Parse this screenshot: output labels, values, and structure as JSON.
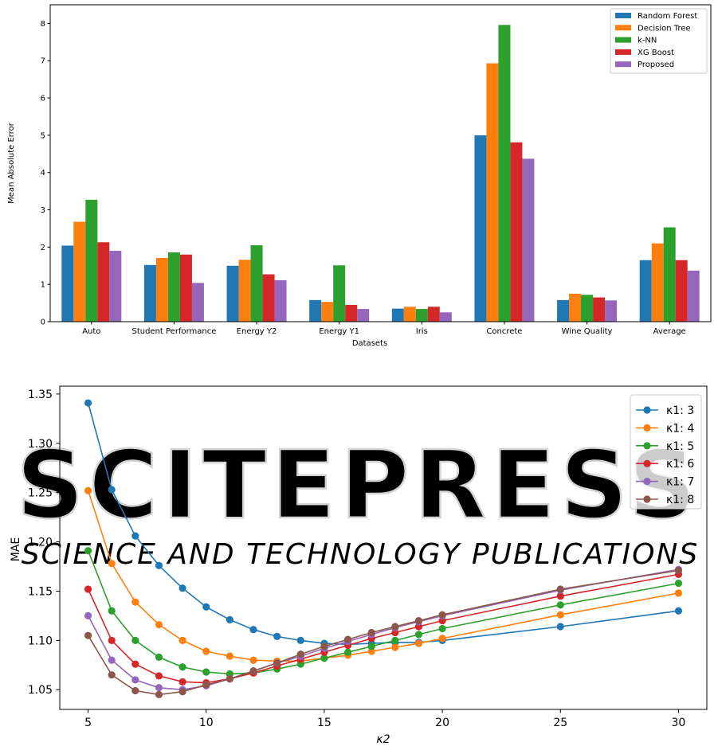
{
  "watermark": {
    "line1": "SCITEPRESS",
    "line2": "SCIENCE AND TECHNOLOGY PUBLICATIONS",
    "color": "#cfcfcf"
  },
  "chart_data": [
    {
      "type": "bar",
      "xlabel": "Datasets",
      "ylabel": "Mean Absolute Error",
      "ylim": [
        0,
        8.5
      ],
      "yticks": [
        0,
        1,
        2,
        3,
        4,
        5,
        6,
        7,
        8
      ],
      "legend_position": "top-right",
      "grid": false,
      "categories": [
        "Auto",
        "Student Performance",
        "Energy Y2",
        "Energy Y1",
        "Iris",
        "Concrete",
        "Wine Quality",
        "Average"
      ],
      "series": [
        {
          "name": "Random Forest",
          "color": "#1f77b4",
          "values": [
            2.04,
            1.52,
            1.5,
            0.58,
            0.35,
            5.0,
            0.58,
            1.65
          ]
        },
        {
          "name": "Decision Tree",
          "color": "#ff7f0e",
          "values": [
            2.68,
            1.71,
            1.66,
            0.53,
            0.4,
            6.93,
            0.75,
            2.1
          ]
        },
        {
          "name": "k-NN",
          "color": "#2ca02c",
          "values": [
            3.27,
            1.86,
            2.05,
            1.51,
            0.34,
            7.96,
            0.72,
            2.53
          ]
        },
        {
          "name": "XG Boost",
          "color": "#d62728",
          "values": [
            2.13,
            1.8,
            1.27,
            0.45,
            0.4,
            4.81,
            0.65,
            1.65
          ]
        },
        {
          "name": "Proposed",
          "color": "#9467bd",
          "values": [
            1.9,
            1.04,
            1.11,
            0.34,
            0.25,
            4.37,
            0.57,
            1.37
          ]
        }
      ]
    },
    {
      "type": "line",
      "xlabel": "κ2",
      "ylabel": "MAE",
      "xlim": [
        3.8,
        31.2
      ],
      "ylim": [
        1.03,
        1.358
      ],
      "xticks": [
        5,
        10,
        15,
        20,
        25,
        30
      ],
      "yticks": [
        "1.05",
        "1.10",
        "1.15",
        "1.20",
        "1.25",
        "1.30",
        "1.35"
      ],
      "legend_position": "top-right",
      "grid": false,
      "x": [
        5,
        6,
        7,
        8,
        9,
        10,
        11,
        12,
        13,
        14,
        15,
        16,
        17,
        18,
        19,
        20,
        25,
        30
      ],
      "series": [
        {
          "name": "κ1: 3",
          "color": "#1f77b4",
          "values": [
            1.341,
            1.253,
            1.206,
            1.176,
            1.153,
            1.134,
            1.121,
            1.111,
            1.104,
            1.1,
            1.097,
            1.096,
            1.097,
            1.098,
            1.098,
            1.1,
            1.114,
            1.13
          ]
        },
        {
          "name": "κ1: 4",
          "color": "#ff7f0e",
          "values": [
            1.252,
            1.178,
            1.139,
            1.116,
            1.1,
            1.089,
            1.084,
            1.08,
            1.079,
            1.079,
            1.082,
            1.085,
            1.089,
            1.093,
            1.097,
            1.102,
            1.126,
            1.148
          ]
        },
        {
          "name": "κ1: 5",
          "color": "#2ca02c",
          "values": [
            1.191,
            1.13,
            1.1,
            1.083,
            1.073,
            1.068,
            1.066,
            1.067,
            1.071,
            1.076,
            1.082,
            1.088,
            1.094,
            1.1,
            1.106,
            1.112,
            1.136,
            1.158
          ]
        },
        {
          "name": "κ1: 6",
          "color": "#d62728",
          "values": [
            1.152,
            1.1,
            1.076,
            1.064,
            1.058,
            1.057,
            1.061,
            1.067,
            1.074,
            1.081,
            1.088,
            1.095,
            1.102,
            1.108,
            1.114,
            1.12,
            1.145,
            1.167
          ]
        },
        {
          "name": "κ1: 7",
          "color": "#9467bd",
          "values": [
            1.125,
            1.08,
            1.06,
            1.052,
            1.05,
            1.054,
            1.061,
            1.069,
            1.077,
            1.084,
            1.092,
            1.099,
            1.106,
            1.113,
            1.119,
            1.125,
            1.151,
            1.172
          ]
        },
        {
          "name": "κ1: 8",
          "color": "#8c564b",
          "values": [
            1.105,
            1.065,
            1.049,
            1.045,
            1.048,
            1.055,
            1.061,
            1.069,
            1.077,
            1.086,
            1.094,
            1.101,
            1.108,
            1.114,
            1.12,
            1.126,
            1.152,
            1.171
          ]
        }
      ]
    }
  ]
}
